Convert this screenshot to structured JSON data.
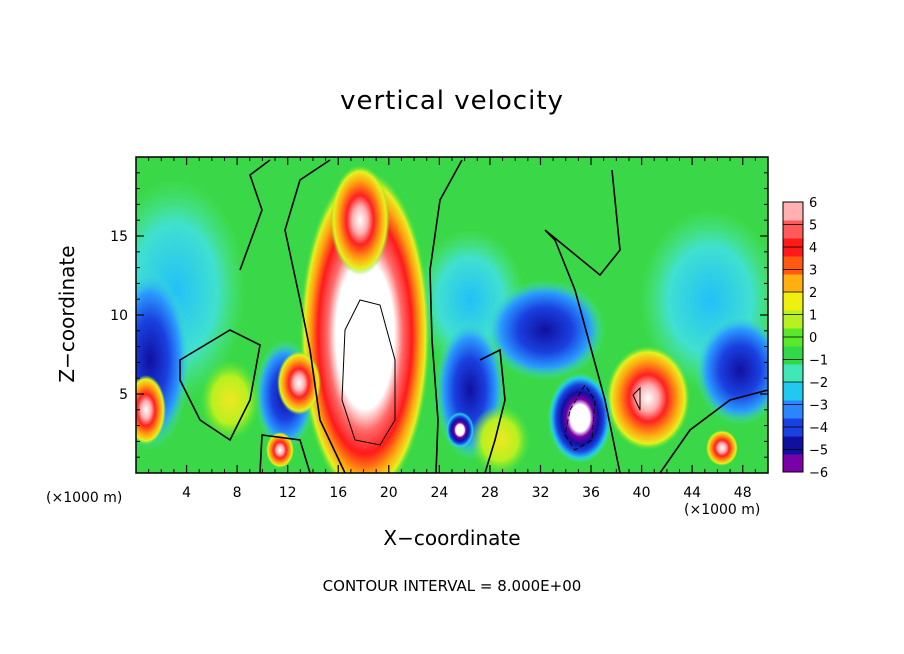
{
  "chart_data": {
    "type": "heatmap",
    "title": "vertical velocity",
    "xlabel": "X−coordinate",
    "ylabel": "Z−coordinate",
    "x_unit": "(×1000 m)",
    "footer": "CONTOUR INTERVAL = 8.000E+00",
    "xlim": [
      0,
      50
    ],
    "ylim": [
      0,
      20
    ],
    "x_ticks": [
      "4",
      "8",
      "12",
      "16",
      "20",
      "24",
      "28",
      "32",
      "36",
      "40",
      "44",
      "48"
    ],
    "y_ticks": [
      "5",
      "10",
      "15"
    ],
    "colorbar": {
      "ticks": [
        "6",
        "5",
        "4",
        "3",
        "2",
        "1",
        "0",
        "−1",
        "−2",
        "−3",
        "−4",
        "−5",
        "−6"
      ],
      "range": [
        -6,
        6
      ],
      "colors": [
        "#7a00a8",
        "#1010a0",
        "#1a40e0",
        "#2a86ff",
        "#22c8f0",
        "#40e8b8",
        "#30d84a",
        "#5ae82a",
        "#b8f020",
        "#f0f010",
        "#ffb010",
        "#ff5a10",
        "#ff1a1a",
        "#ff5a5a",
        "#ffb0b0"
      ]
    },
    "features": [
      {
        "kind": "updraft",
        "x": 18.5,
        "z": 7,
        "value": 6
      },
      {
        "kind": "updraft",
        "x": 40,
        "z": 4.5,
        "value": 5
      },
      {
        "kind": "updraft",
        "x": 12.5,
        "z": 5.5,
        "value": 6
      },
      {
        "kind": "updraft",
        "x": 46.5,
        "z": 1.5,
        "value": 5
      },
      {
        "kind": "updraft",
        "x": 1,
        "z": 4,
        "value": 6
      },
      {
        "kind": "downdraft",
        "x": 35,
        "z": 3.5,
        "value": -6
      },
      {
        "kind": "downdraft",
        "x": 26,
        "z": 5,
        "value": -5
      },
      {
        "kind": "downdraft",
        "x": 11,
        "z": 4,
        "value": -5
      }
    ]
  }
}
